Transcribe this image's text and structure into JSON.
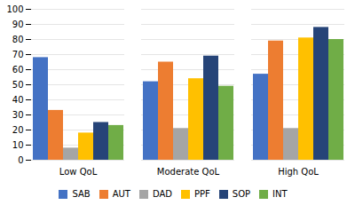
{
  "chart_data": {
    "type": "bar",
    "categories": [
      "Low QoL",
      "Moderate QoL",
      "High QoL"
    ],
    "series": [
      {
        "name": "SAB",
        "color": "#4472C4",
        "values": [
          68,
          52,
          57
        ]
      },
      {
        "name": "AUT",
        "color": "#ED7D31",
        "values": [
          33,
          65,
          79
        ]
      },
      {
        "name": "DAD",
        "color": "#A5A5A5",
        "values": [
          8,
          21,
          21
        ]
      },
      {
        "name": "PPF",
        "color": "#FFC000",
        "values": [
          18,
          54,
          81
        ]
      },
      {
        "name": "SOP",
        "color": "#264478",
        "values": [
          25,
          69,
          88
        ]
      },
      {
        "name": "INT",
        "color": "#70AD47",
        "values": [
          23,
          49,
          80
        ]
      }
    ],
    "ylim": [
      0,
      100
    ],
    "yticks": [
      0,
      10,
      20,
      30,
      40,
      50,
      60,
      70,
      80,
      90,
      100
    ],
    "grid": true,
    "legend": "bottom"
  }
}
